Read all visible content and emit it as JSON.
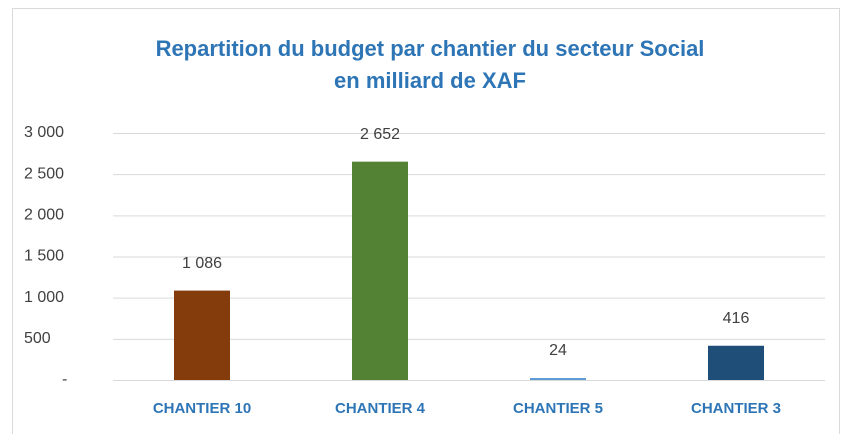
{
  "chart_data": {
    "type": "bar",
    "title": [
      "Repartition du budget par chantier du secteur Social",
      "en milliard de XAF"
    ],
    "categories": [
      "CHANTIER 10",
      "CHANTIER 4",
      "CHANTIER 5",
      "CHANTIER 3"
    ],
    "values": [
      1086,
      2652,
      24,
      416
    ],
    "value_labels": [
      "1 086",
      "2 652",
      "24",
      "416"
    ],
    "colors": [
      "#843c0c",
      "#548235",
      "#5b9bd5",
      "#1f4e79"
    ],
    "ylim": [
      0,
      3000
    ],
    "yticks": [
      {
        "value": 0,
        "label": "-"
      },
      500,
      {
        "value": 1000,
        "label": "1 000"
      },
      {
        "value": 1500,
        "label": "1 500"
      },
      {
        "value": 2000,
        "label": "2 000"
      },
      {
        "value": 2500,
        "label": "2 500"
      },
      {
        "value": 3000,
        "label": "3 000"
      }
    ],
    "grid": true
  }
}
